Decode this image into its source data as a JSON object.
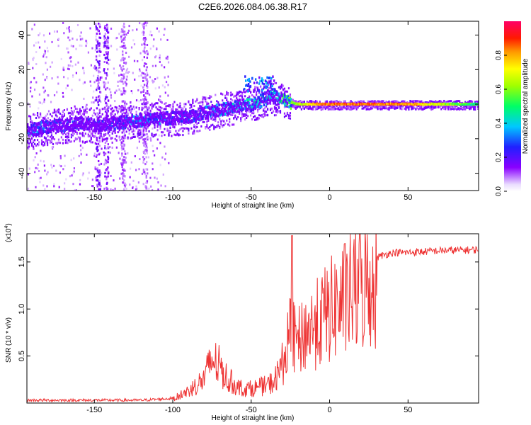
{
  "title": "C2E6.2026.084.06.38.R17",
  "chart_data": [
    {
      "type": "heatmap",
      "name": "spectrogram",
      "xlabel": "Height of straight line (km)",
      "ylabel": "Frequency (Hz)",
      "xlim": [
        -193,
        95
      ],
      "ylim": [
        -50,
        48
      ],
      "xticks": [
        -150,
        -100,
        -50,
        0,
        50
      ],
      "yticks": [
        -40,
        -20,
        0,
        20,
        40
      ],
      "ridge": {
        "description": "frequency of peak amplitude vs height",
        "x": [
          -193,
          -180,
          -170,
          -160,
          -150,
          -140,
          -130,
          -120,
          -110,
          -100,
          -90,
          -80,
          -70,
          -60,
          -50,
          -45,
          -40,
          -35,
          -30,
          -25,
          -20,
          -15,
          -10,
          0,
          20,
          50,
          95
        ],
        "freq": [
          -15,
          -13,
          -12,
          -11,
          -12,
          -11,
          -10,
          -9,
          -8,
          -8,
          -7,
          -5,
          -3,
          -1,
          0,
          2,
          4,
          4,
          3,
          1,
          0,
          0,
          0,
          0,
          0,
          0,
          0
        ],
        "amplitude": [
          0.35,
          0.3,
          0.28,
          0.25,
          0.22,
          0.25,
          0.3,
          0.32,
          0.3,
          0.28,
          0.3,
          0.32,
          0.35,
          0.4,
          0.45,
          0.45,
          0.42,
          0.45,
          0.5,
          0.65,
          0.75,
          0.8,
          0.9,
          0.95,
          0.95,
          0.92,
          0.55
        ]
      },
      "colorbar": {
        "label": "Normalized spectral amplitude",
        "range": [
          0,
          1
        ],
        "ticks": [
          "0.0",
          "0.2",
          "0.4",
          "0.6",
          "0.8"
        ]
      }
    },
    {
      "type": "line",
      "name": "snr",
      "xlabel": "Height of straight line (km)",
      "ylabel": "SNR (10 * v/v)",
      "scale_label": "(x10",
      "scale_exp": "4",
      "scale_close": ")",
      "xlim": [
        -193,
        95
      ],
      "ylim": [
        0,
        1.8
      ],
      "xticks": [
        -150,
        -100,
        -50,
        0,
        50
      ],
      "yticks": [
        "0.5",
        "1.0",
        "1.5"
      ],
      "color": "#ee3333",
      "envelope": {
        "x": [
          -193,
          -120,
          -100,
          -90,
          -80,
          -75,
          -70,
          -65,
          -60,
          -55,
          -50,
          -45,
          -40,
          -35,
          -30,
          -25,
          -20,
          -15,
          -10,
          -5,
          0,
          10,
          20,
          30,
          40,
          50,
          70,
          95
        ],
        "y": [
          0.03,
          0.03,
          0.05,
          0.15,
          0.3,
          0.55,
          0.45,
          0.3,
          0.22,
          0.18,
          0.18,
          0.2,
          0.22,
          0.28,
          0.5,
          0.85,
          0.75,
          0.9,
          0.95,
          1.05,
          1.15,
          1.3,
          1.45,
          1.55,
          1.6,
          1.6,
          1.62,
          1.63
        ]
      },
      "peak": {
        "x": -24,
        "y": 1.78
      }
    }
  ]
}
